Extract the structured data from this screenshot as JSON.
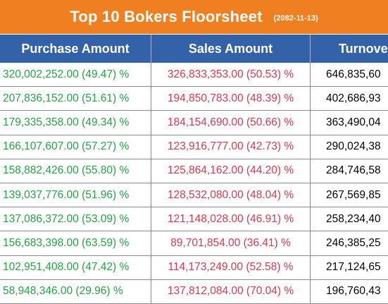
{
  "header": {
    "title": "Top 10 Bokers Floorsheet",
    "date": "(2082-11-13)"
  },
  "columns": {
    "purchase": "Purchase Amount",
    "sales": "Sales Amount",
    "turnover": "Turnove"
  },
  "colors": {
    "banner": "#f07f21",
    "header": "#3462a8",
    "purchase_text": "#25a244",
    "sales_text": "#e0364b"
  },
  "rows": [
    {
      "purchase": "320,002,252.00 (49.47) %",
      "sales": "326,833,353.00 (50.53) %",
      "turnover": "646,835,60"
    },
    {
      "purchase": "207,836,152.00 (51.61) %",
      "sales": "194,850,783.00 (48.39) %",
      "turnover": "402,686,93"
    },
    {
      "purchase": "179,335,358.00 (49.34) %",
      "sales": "184,154,690.00 (50.66) %",
      "turnover": "363,490,04"
    },
    {
      "purchase": "166,107,607.00 (57.27) %",
      "sales": "123,916,777.00 (42.73) %",
      "turnover": "290,024,38"
    },
    {
      "purchase": "158,882,426.00 (55.80) %",
      "sales": "125,864,162.00 (44.20) %",
      "turnover": "284,746,58"
    },
    {
      "purchase": "139,037,776.00 (51.96) %",
      "sales": "128,532,080.00 (48.04) %",
      "turnover": "267,569,85"
    },
    {
      "purchase": "137,086,372.00 (53.09) %",
      "sales": "121,148,028.00 (46.91) %",
      "turnover": "258,234,40"
    },
    {
      "purchase": "156,683,398.00 (63.59) %",
      "sales": "89,701,854.00 (36.41) %",
      "turnover": "246,385,25"
    },
    {
      "purchase": "102,951,408.00 (47.42) %",
      "sales": "114,173,249.00 (52.58) %",
      "turnover": "217,124,65"
    },
    {
      "purchase": "58,948,346.00 (29.96) %",
      "sales": "137,812,084.00 (70.04) %",
      "turnover": "196,760,43"
    }
  ]
}
